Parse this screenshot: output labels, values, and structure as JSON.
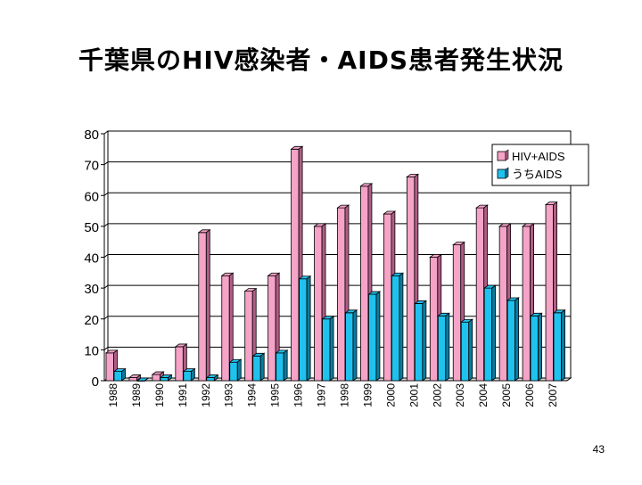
{
  "slide": {
    "title": "千葉県のHIV感染者・AIDS患者発生状況",
    "page_number": "43"
  },
  "chart_data": {
    "type": "bar",
    "title": "",
    "xlabel": "",
    "ylabel": "",
    "ylim": [
      0,
      80
    ],
    "yticks": [
      "0",
      "10",
      "20",
      "30",
      "40",
      "50",
      "60",
      "70",
      "80"
    ],
    "grid": true,
    "legend_position": "top-right",
    "categories": [
      "1988",
      "1989",
      "1990",
      "1991",
      "1992",
      "1993",
      "1994",
      "1995",
      "1996",
      "1997",
      "1998",
      "1999",
      "2000",
      "2001",
      "2002",
      "2003",
      "2004",
      "2005",
      "2006",
      "2007"
    ],
    "series": [
      {
        "name": "HIV+AIDS",
        "color": "#f5a3c7",
        "dark": "#b05d86",
        "values": [
          9,
          1,
          2,
          11,
          48,
          34,
          29,
          34,
          75,
          50,
          56,
          63,
          54,
          66,
          40,
          44,
          56,
          50,
          50,
          57
        ]
      },
      {
        "name": "うちAIDS",
        "color": "#1fc2ee",
        "dark": "#0a7ca0",
        "values": [
          3,
          0,
          1,
          3,
          1,
          6,
          8,
          9,
          33,
          20,
          22,
          28,
          34,
          25,
          21,
          19,
          30,
          26,
          21,
          22
        ]
      }
    ]
  }
}
